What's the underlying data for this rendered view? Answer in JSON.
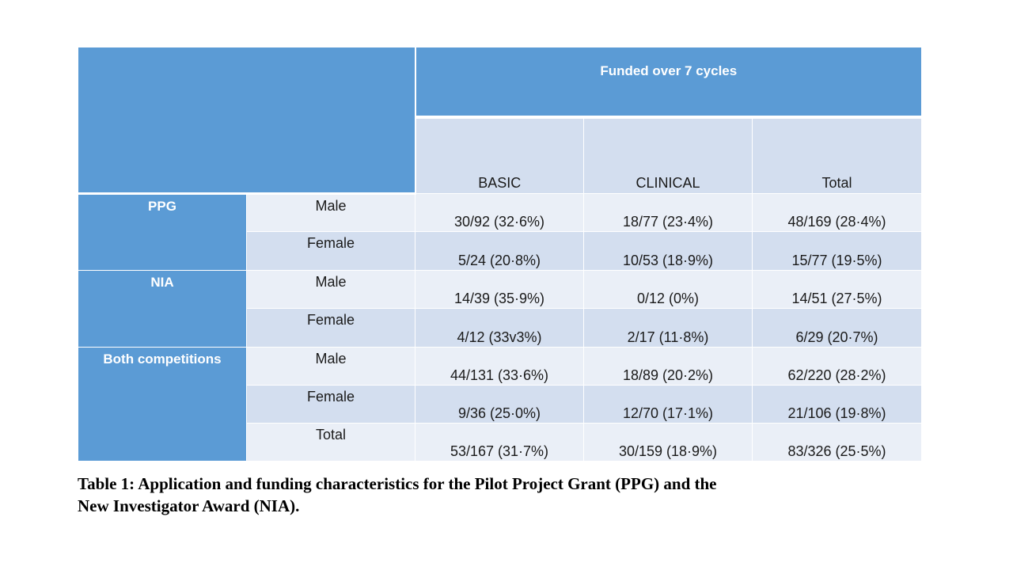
{
  "table": {
    "super_header": "Funded over 7 cycles",
    "columns": [
      "BASIC",
      "CLINICAL",
      "Total"
    ],
    "groups": [
      {
        "name": "PPG",
        "rows": [
          {
            "label": "Male",
            "values": [
              "30/92 (32·6%)",
              "18/77 (23·4%)",
              "48/169 (28·4%)"
            ]
          },
          {
            "label": "Female",
            "values": [
              "5/24 (20·8%)",
              "10/53 (18·9%)",
              "15/77 (19·5%)"
            ]
          }
        ]
      },
      {
        "name": "NIA",
        "rows": [
          {
            "label": "Male",
            "values": [
              "14/39 (35·9%)",
              "0/12 (0%)",
              "14/51 (27·5%)"
            ]
          },
          {
            "label": "Female",
            "values": [
              "4/12 (33v3%)",
              "2/17 (11·8%)",
              "6/29 (20·7%)"
            ]
          }
        ]
      },
      {
        "name": "Both competitions",
        "rows": [
          {
            "label": "Male",
            "values": [
              "44/131 (33·6%)",
              "18/89 (20·2%)",
              "62/220 (28·2%)"
            ]
          },
          {
            "label": "Female",
            "values": [
              "9/36 (25·0%)",
              "12/70 (17·1%)",
              "21/106 (19·8%)"
            ]
          },
          {
            "label": "Total",
            "values": [
              "53/167 (31·7%)",
              "30/159 (18·9%)",
              "83/326 (25·5%)"
            ]
          }
        ]
      }
    ]
  },
  "caption": {
    "line1": "Table 1: Application and funding characteristics for the Pilot Project Grant (PPG) and the",
    "line2": "New Investigator Award (NIA)."
  },
  "colors": {
    "header_blue": "#5b9bd5",
    "row_light": "#eaeff7",
    "row_dark": "#d3deef"
  }
}
